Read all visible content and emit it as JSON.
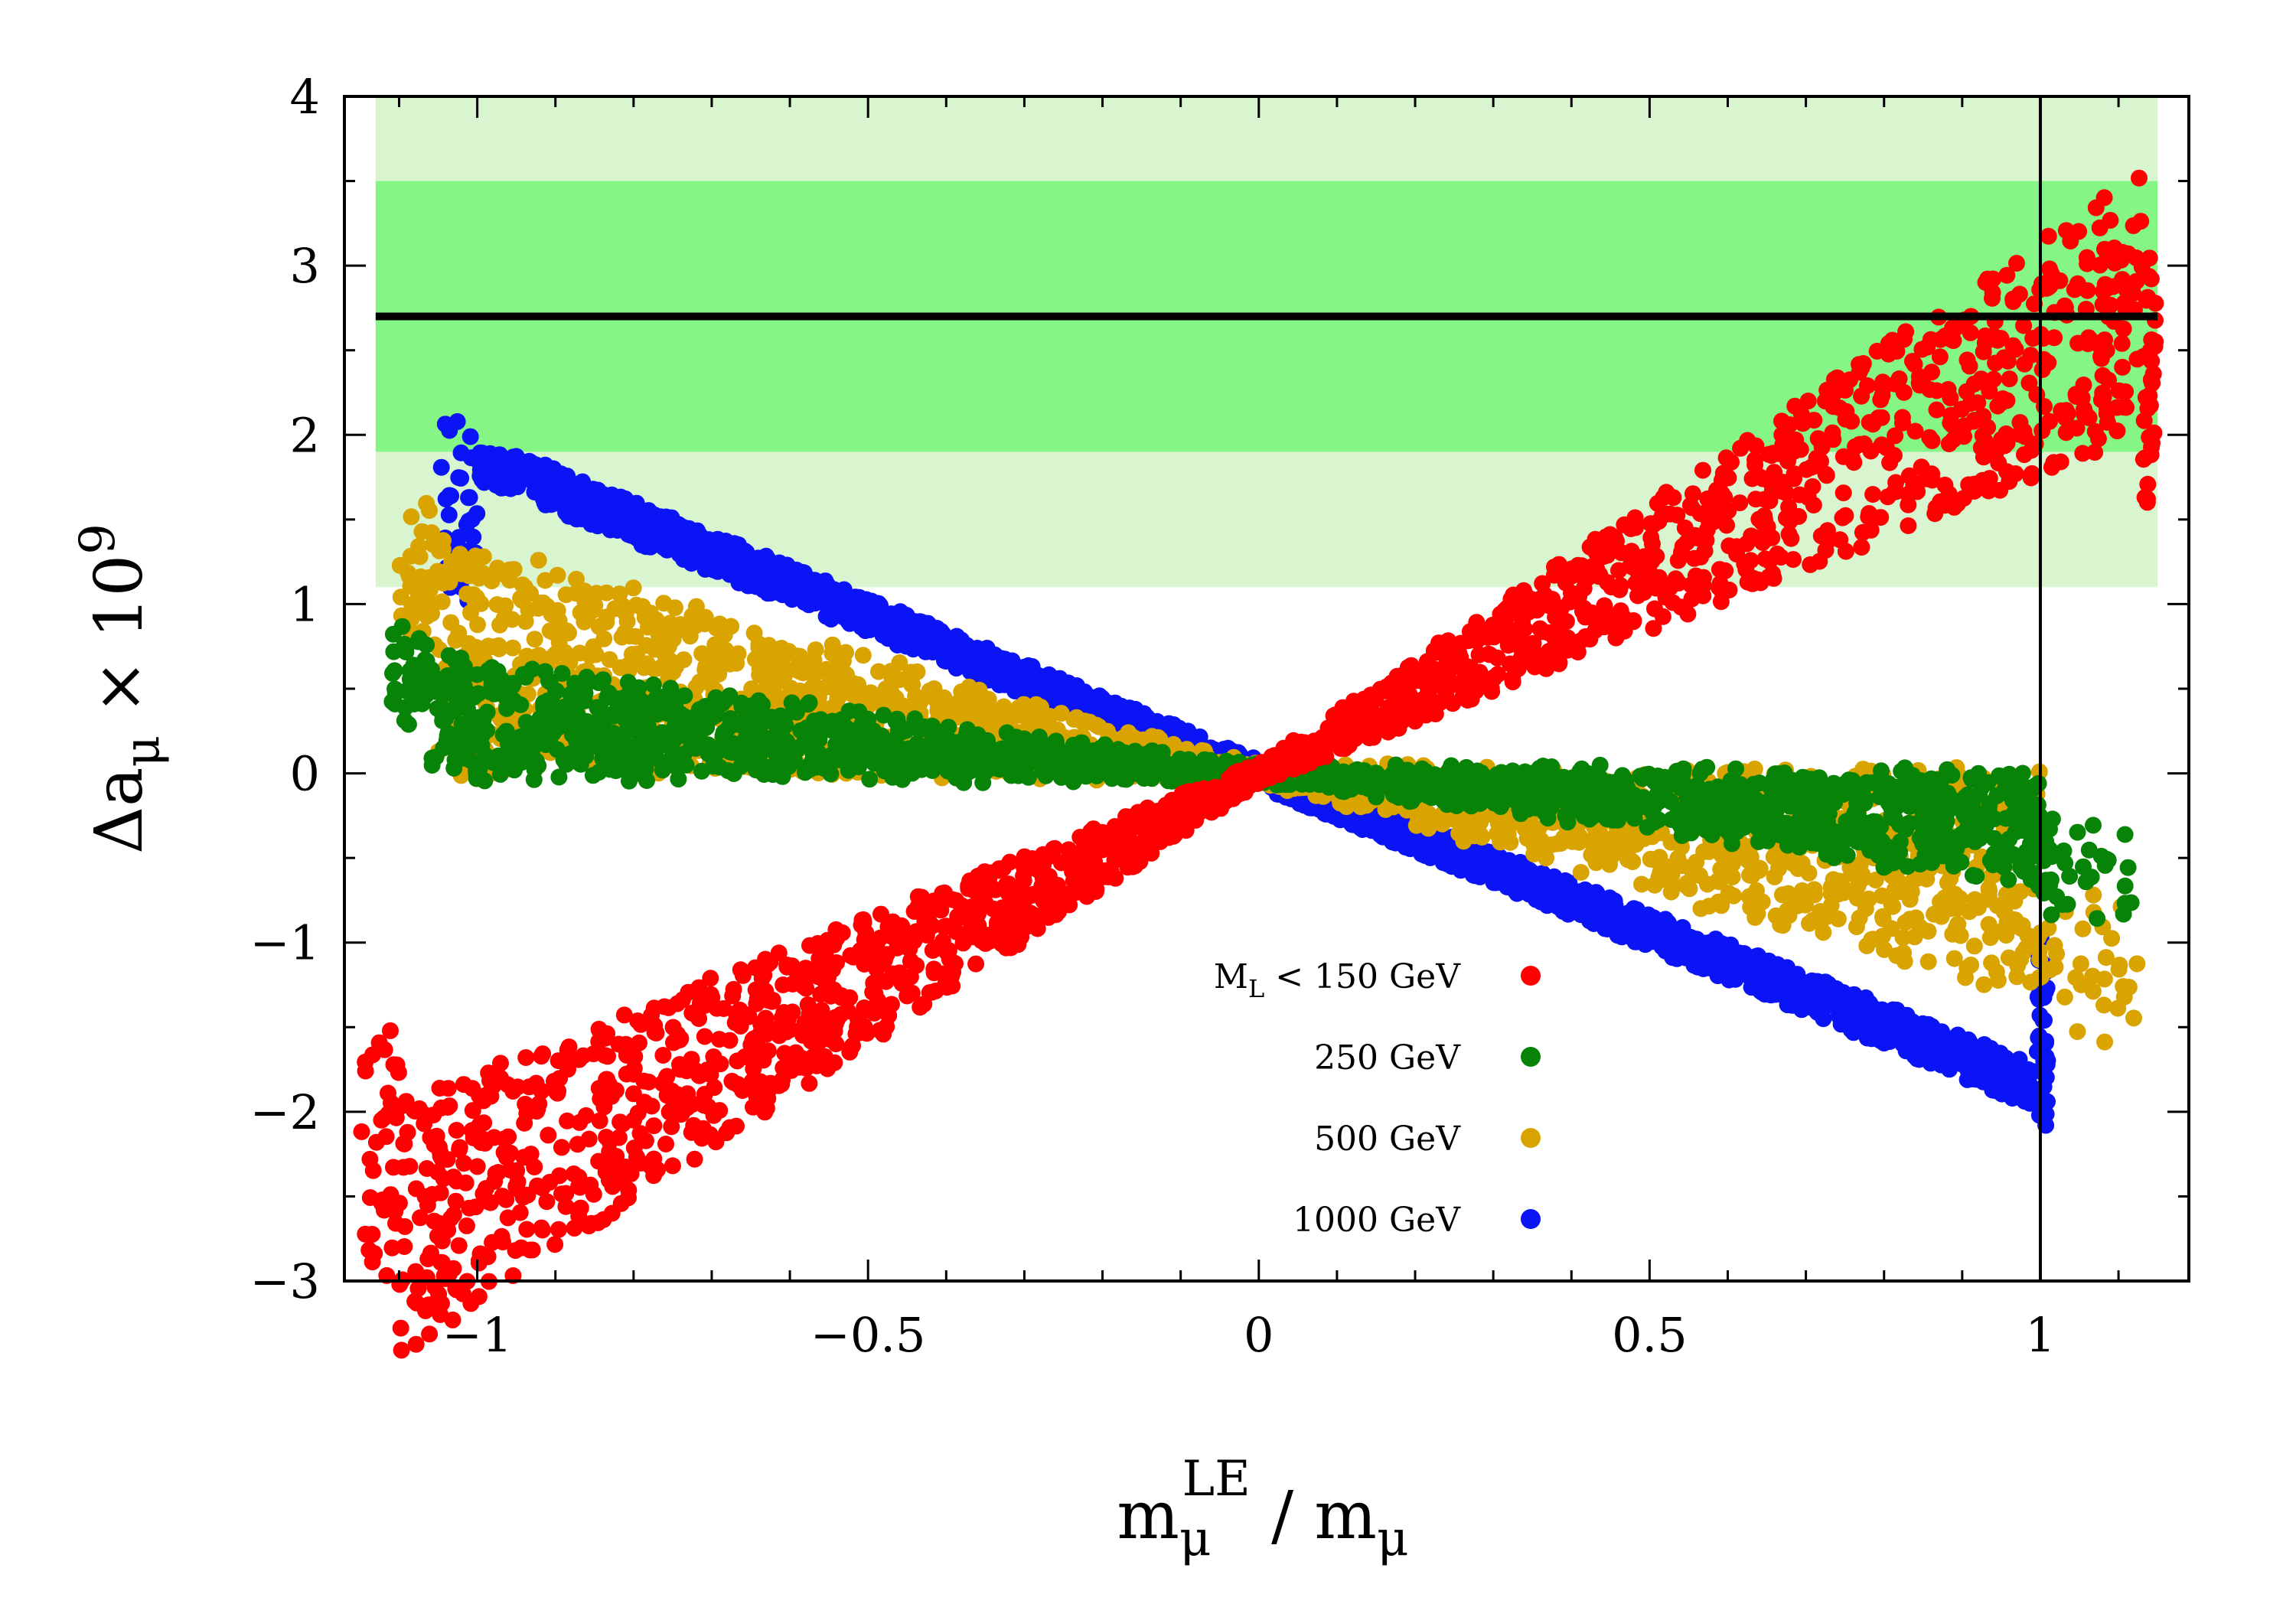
{
  "chart_data": {
    "type": "scatter",
    "title": "",
    "xlabel": {
      "base": "m",
      "sub": "μ",
      "sup": "LE",
      "rest": " / m",
      "rest_sub": "μ"
    },
    "ylabel": {
      "prefix": "Δa",
      "sub": "μ",
      "times": " × 10",
      "sup": "9"
    },
    "xlim": [
      -1.17,
      1.19
    ],
    "ylim": [
      -3,
      4
    ],
    "x_ticks": [
      -1,
      -0.5,
      0,
      0.5,
      1
    ],
    "x_tick_labels": [
      "−1",
      "−0.5",
      "0",
      "0.5",
      "1"
    ],
    "y_ticks": [
      -3,
      -2,
      -1,
      0,
      1,
      2,
      3,
      4
    ],
    "y_tick_labels": [
      "−3",
      "−2",
      "−1",
      "0",
      "1",
      "2",
      "3",
      "4"
    ],
    "bands": [
      {
        "ymin": 1.1,
        "ymax": 4.0,
        "xmin": -1.13,
        "xmax": 1.15,
        "color": "#d8f5d0"
      },
      {
        "ymin": 1.9,
        "ymax": 3.5,
        "xmin": -1.13,
        "xmax": 1.15,
        "color": "#85f585"
      }
    ],
    "hline": {
      "y": 2.7,
      "xmin": -1.13,
      "xmax": 1.15,
      "color": "#000000"
    },
    "vline": {
      "x": 1.0,
      "color": "#000000"
    },
    "legend_position": "bottom-center",
    "series": [
      {
        "name": "1000 GeV",
        "color": "#0a14f5",
        "slope": -1.86,
        "halfwidth": 0.06,
        "xmin": -1.0,
        "xmax": 0.995,
        "x_extend": 1.01
      },
      {
        "name": "500 GeV",
        "color": "#d9a400",
        "slope": -1.33,
        "halfwidth": 0.7,
        "xmin": -1.05,
        "xmax": 1.0,
        "x_extend": 1.14
      },
      {
        "name": "250 GeV",
        "color": "#078307",
        "slope": -0.64,
        "halfwidth": 0.68,
        "xmin": -1.06,
        "xmax": 1.0,
        "x_extend": 1.12
      },
      {
        "name": "M_L < 150 GeV",
        "color": "#ff0000",
        "slope": 2.45,
        "halfwidth": 0.64,
        "xmin": -1.1,
        "xmax": 1.13,
        "x_extend": 1.15
      }
    ],
    "legend_entries": [
      {
        "label_main": "M",
        "label_sub": "L",
        "label_rest": " < 150 GeV",
        "color": "#ff0000"
      },
      {
        "label_main": "250 GeV",
        "label_sub": "",
        "label_rest": "",
        "color": "#078307"
      },
      {
        "label_main": "500 GeV",
        "label_sub": "",
        "label_rest": "",
        "color": "#d9a400"
      },
      {
        "label_main": "1000 GeV",
        "label_sub": "",
        "label_rest": "",
        "color": "#0a14f5"
      }
    ]
  }
}
